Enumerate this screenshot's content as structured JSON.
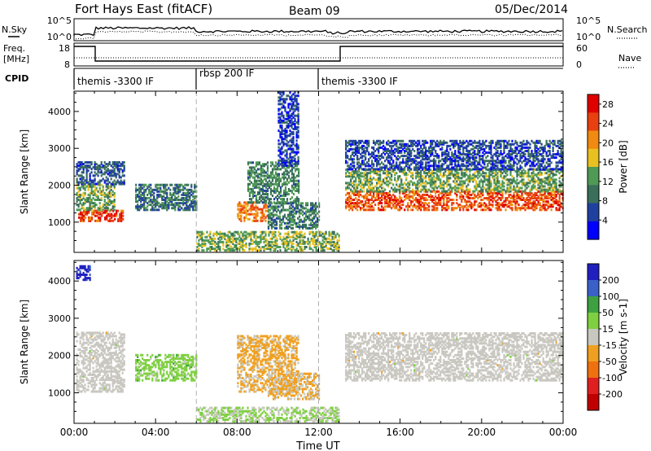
{
  "header": {
    "station": "Fort Hays East (fitACF)",
    "beam": "Beam 09",
    "date": "05/Dec/2014"
  },
  "top_panels": {
    "nsky_label": "N.Sky",
    "nsky_ticks": [
      "10^5",
      "10^0"
    ],
    "nsearch_label": "N.Search",
    "nsearch_ticks": [
      "10^5",
      "10^0"
    ],
    "freq_label_1": "Freq.",
    "freq_label_2": "[MHz]",
    "freq_ticks": [
      "18",
      "8"
    ],
    "nave_label": "Nave",
    "nave_ticks": [
      "60",
      "0"
    ],
    "cpid_label": "CPID",
    "cpid_segments": [
      {
        "label": "themis -3300 IF",
        "start_hr": 0,
        "end_hr": 6
      },
      {
        "label": "rbsp 200 IF",
        "start_hr": 6,
        "end_hr": 12
      },
      {
        "label": "themis -3300 IF",
        "start_hr": 12,
        "end_hr": 24
      }
    ]
  },
  "colors": {
    "power_scale": [
      "#0000ff",
      "#2040a0",
      "#3a6f5a",
      "#4f9a55",
      "#e8c020",
      "#f08a10",
      "#e84010",
      "#e00000"
    ],
    "velocity_scale": [
      "#2020c0",
      "#3b60c8",
      "#3ea040",
      "#7ed040",
      "#c8c8c0",
      "#f0a020",
      "#f07010",
      "#e02020",
      "#c00000"
    ],
    "scatter_gray": "#c9c7c0",
    "dash_gray": "#b0b0b0"
  },
  "chart_data": [
    {
      "type": "heatmap",
      "title": "",
      "xlabel": "Time UT",
      "ylabel": "Slant Range [km]",
      "x_ticks": [
        "00:00",
        "04:00",
        "08:00",
        "12:00",
        "16:00",
        "20:00",
        "00:00"
      ],
      "xlim_hours": [
        0,
        24
      ],
      "y_ticks": [
        "1000",
        "2000",
        "3000",
        "4000"
      ],
      "ylim_km": [
        180,
        4550
      ],
      "colorbar_label": "Power [dB]",
      "colorbar_ticks": [
        "4",
        "8",
        "12",
        "16",
        "20",
        "24",
        "28"
      ],
      "colorbar_range": [
        0,
        30
      ],
      "dashed_vlines_hr": [
        6,
        12
      ],
      "regions": [
        {
          "t0": 0.2,
          "t1": 2.4,
          "r0": 1000,
          "r1": 1300,
          "p": 25
        },
        {
          "t0": 0.1,
          "t1": 2.0,
          "r0": 1300,
          "r1": 2000,
          "p": 13
        },
        {
          "t0": 0.1,
          "t1": 2.5,
          "r0": 2000,
          "r1": 2600,
          "p": 7
        },
        {
          "t0": 3.0,
          "t1": 6.0,
          "r0": 1300,
          "r1": 2000,
          "p": 9
        },
        {
          "t0": 8.0,
          "t1": 9.5,
          "r0": 1000,
          "r1": 1500,
          "p": 22
        },
        {
          "t0": 8.5,
          "t1": 11.0,
          "r0": 1500,
          "r1": 2600,
          "p": 11
        },
        {
          "t0": 9.5,
          "t1": 12.0,
          "r0": 800,
          "r1": 1500,
          "p": 10
        },
        {
          "t0": 13.3,
          "t1": 24.0,
          "r0": 1300,
          "r1": 1800,
          "p": 24
        },
        {
          "t0": 13.3,
          "t1": 24.0,
          "r0": 1800,
          "r1": 2400,
          "p": 13
        },
        {
          "t0": 13.3,
          "t1": 24.0,
          "r0": 2400,
          "r1": 3200,
          "p": 6
        },
        {
          "t0": 6.0,
          "t1": 13.0,
          "r0": 200,
          "r1": 700,
          "p": 14
        },
        {
          "t0": 10.0,
          "t1": 11.0,
          "r0": 2500,
          "r1": 4500,
          "p": 5
        }
      ]
    },
    {
      "type": "heatmap",
      "title": "",
      "xlabel": "Time UT",
      "ylabel": "Slant Range [km]",
      "x_ticks": [
        "00:00",
        "04:00",
        "08:00",
        "12:00",
        "16:00",
        "20:00",
        "00:00"
      ],
      "xlim_hours": [
        0,
        24
      ],
      "y_ticks": [
        "1000",
        "2000",
        "3000",
        "4000"
      ],
      "ylim_km": [
        180,
        4550
      ],
      "colorbar_label": "Velocity [m s-1]",
      "colorbar_ticks": [
        "200",
        "100",
        "50",
        "15",
        "-15",
        "-50",
        "-100",
        "-200"
      ],
      "colorbar_range": [
        -250,
        250
      ],
      "dashed_vlines_hr": [
        6,
        12
      ],
      "regions": [
        {
          "t0": 0.1,
          "t1": 2.5,
          "r0": 1000,
          "r1": 2600,
          "v": 0
        },
        {
          "t0": 3.0,
          "t1": 6.0,
          "r0": 1300,
          "r1": 2000,
          "v": 55
        },
        {
          "t0": 8.0,
          "t1": 11.0,
          "r0": 1000,
          "r1": 2500,
          "v": -40
        },
        {
          "t0": 9.5,
          "t1": 12.0,
          "r0": 800,
          "r1": 1500,
          "v": -35
        },
        {
          "t0": 13.3,
          "t1": 24.0,
          "r0": 1300,
          "r1": 2600,
          "v": 0
        },
        {
          "t0": 6.0,
          "t1": 13.0,
          "r0": 200,
          "r1": 600,
          "v": 30
        },
        {
          "t0": 0.1,
          "t1": 0.8,
          "r0": 4000,
          "r1": 4400,
          "v": 210
        }
      ]
    }
  ]
}
